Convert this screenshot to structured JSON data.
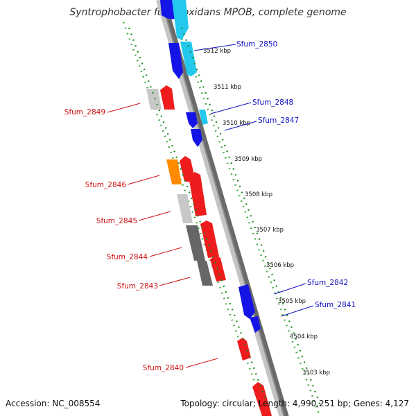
{
  "title_prefix": "Syntrophobacter fumaroxidans",
  "title_suffix": "MPOB, complete genome",
  "footer": {
    "accession": "Accession: NC_008554",
    "summary": "Topology: circular; Length: 4,990,251 bp; Genes: 4,127"
  },
  "kbp_ticks": [
    "3512 kbp",
    "3511 kbp",
    "3510 kbp",
    "3509 kbp",
    "3508 kbp",
    "3507 kbp",
    "3506 kbp",
    "3505 kbp",
    "3504 kbp",
    "3503 kbp"
  ],
  "gene_labels": {
    "forward": [
      "Sfum_2850",
      "Sfum_2848",
      "Sfum_2847",
      "Sfum_2842",
      "Sfum_2841"
    ],
    "reverse": [
      "Sfum_2849",
      "Sfum_2846",
      "Sfum_2845",
      "Sfum_2844",
      "Sfum_2843",
      "Sfum_2840"
    ]
  },
  "colors": {
    "forward_label": "#1010c0",
    "reverse_label": "#cc1010",
    "forward_gene": "#1414e6",
    "forward_gene_alt": "#22c8ee",
    "reverse_gene": "#ee1c1c",
    "feature_light_gray": "#c8c8c8",
    "feature_dark_gray": "#666666",
    "feature_orange": "#ff8a00",
    "backbone": "#8a8a8a",
    "tick_dots": "#1e9a1e"
  }
}
